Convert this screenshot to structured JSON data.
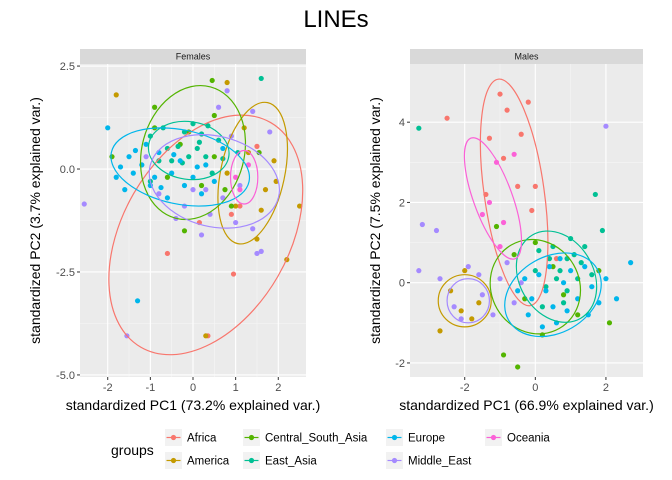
{
  "chart_data": {
    "type": "scatter",
    "title": "LINEs",
    "legend": {
      "title": "groups",
      "position": "bottom",
      "entries": [
        "Africa",
        "America",
        "Central_South_Asia",
        "East_Asia",
        "Europe",
        "Middle_East",
        "Oceania"
      ]
    },
    "group_colors": {
      "Africa": "#F8766D",
      "America": "#C49A00",
      "Central_South_Asia": "#53B400",
      "East_Asia": "#00C094",
      "Europe": "#00B6EB",
      "Middle_East": "#A58AFF",
      "Oceania": "#FB61D7"
    },
    "panels": [
      {
        "strip": "Females",
        "xlabel": "standardized PC1 (73.2% explained var.)",
        "ylabel": "standardized PC2 (3.7% explained var.)",
        "xlim": [
          -2.65,
          2.65
        ],
        "ylim": [
          -5.05,
          2.55
        ],
        "xticks": [
          -2,
          -1,
          0,
          1,
          2
        ],
        "yticks": [
          -5.0,
          -2.5,
          0.0,
          2.5
        ],
        "ytick_labels": [
          "-5.0",
          "-2.5",
          "0.0",
          "2.5"
        ],
        "ellipses": [
          {
            "group": "Africa",
            "cx": 0.3,
            "cy": -1.6,
            "rx": 1.95,
            "ry": 3.15,
            "angle": 30
          },
          {
            "group": "America",
            "cx": 1.4,
            "cy": -0.1,
            "rx": 0.75,
            "ry": 1.75,
            "angle": 12
          },
          {
            "group": "Central_South_Asia",
            "cx": 0.0,
            "cy": 0.4,
            "rx": 1.2,
            "ry": 1.65,
            "angle": 15
          },
          {
            "group": "East_Asia",
            "cx": -0.1,
            "cy": 0.45,
            "rx": 0.95,
            "ry": 0.7,
            "angle": 8
          },
          {
            "group": "Europe",
            "cx": -0.3,
            "cy": 0.05,
            "rx": 1.65,
            "ry": 0.9,
            "angle": 12
          },
          {
            "group": "Middle_East",
            "cx": 0.5,
            "cy": -0.3,
            "rx": 1.55,
            "ry": 1.1,
            "angle": 14
          },
          {
            "group": "Oceania",
            "cx": 1.2,
            "cy": -0.2,
            "rx": 0.32,
            "ry": 0.65,
            "angle": 0
          }
        ],
        "points": {
          "Africa": [
            [
              0.35,
              -4.05
            ],
            [
              0.9,
              -1.1
            ],
            [
              -0.6,
              -2.05
            ],
            [
              0.95,
              -2.55
            ],
            [
              1.1,
              -0.9
            ],
            [
              0.15,
              -1.3
            ],
            [
              1.5,
              0.55
            ]
          ],
          "America": [
            [
              2.5,
              -0.9
            ],
            [
              2.2,
              -2.2
            ],
            [
              1.6,
              -1.0
            ],
            [
              1.9,
              0.2
            ],
            [
              1.7,
              -0.5
            ],
            [
              0.8,
              2.1
            ],
            [
              1.2,
              1.0
            ],
            [
              1.5,
              -1.7
            ],
            [
              1.3,
              0.4
            ],
            [
              1.0,
              -0.9
            ],
            [
              0.8,
              -0.1
            ],
            [
              1.95,
              -0.3
            ],
            [
              -1.8,
              1.8
            ],
            [
              0.3,
              -4.05
            ]
          ],
          "Central_South_Asia": [
            [
              0.45,
              2.15
            ],
            [
              -0.9,
              1.5
            ],
            [
              -0.3,
              0.6
            ],
            [
              0.5,
              0.3
            ],
            [
              -0.6,
              -0.2
            ],
            [
              0.9,
              -0.9
            ],
            [
              0.2,
              -0.4
            ],
            [
              -0.9,
              1.0
            ],
            [
              -1.9,
              0.3
            ],
            [
              -0.1,
              0.9
            ],
            [
              0.75,
              -0.5
            ],
            [
              1.55,
              0.4
            ],
            [
              -0.2,
              -1.5
            ],
            [
              0.5,
              1.3
            ]
          ],
          "East_Asia": [
            [
              1.6,
              2.2
            ],
            [
              -1.0,
              0.8
            ],
            [
              -0.6,
              0.5
            ],
            [
              -0.2,
              0.9
            ],
            [
              0.3,
              0.3
            ],
            [
              0.6,
              0.7
            ],
            [
              -0.5,
              0.2
            ],
            [
              0.0,
              1.1
            ],
            [
              -0.35,
              0.55
            ],
            [
              0.15,
              0.65
            ],
            [
              -0.8,
              0.2
            ],
            [
              0.45,
              -0.1
            ],
            [
              -1.0,
              -0.3
            ],
            [
              1.05,
              0.4
            ],
            [
              0.35,
              1.05
            ],
            [
              -0.1,
              0.3
            ],
            [
              0.1,
              0.5
            ],
            [
              -0.7,
              1.0
            ],
            [
              0.2,
              0.85
            ],
            [
              -0.25,
              0.15
            ],
            [
              0.7,
              0.25
            ]
          ],
          "Europe": [
            [
              -1.3,
              -3.2
            ],
            [
              -2.0,
              1.0
            ],
            [
              -1.8,
              -0.2
            ],
            [
              -1.5,
              0.3
            ],
            [
              -1.2,
              0.1
            ],
            [
              -1.0,
              -0.4
            ],
            [
              -0.8,
              0.4
            ],
            [
              -0.5,
              -0.1
            ],
            [
              -0.3,
              0.2
            ],
            [
              0.0,
              -0.2
            ],
            [
              0.3,
              0.1
            ],
            [
              -1.6,
              -0.5
            ],
            [
              -1.1,
              0.6
            ],
            [
              -0.6,
              -0.7
            ],
            [
              0.2,
              -0.6
            ],
            [
              -1.4,
              -0.1
            ],
            [
              0.5,
              -0.3
            ],
            [
              0.7,
              0.5
            ],
            [
              -0.9,
              -0.2
            ],
            [
              -0.2,
              -0.4
            ],
            [
              -1.35,
              0.45
            ],
            [
              -0.45,
              0.35
            ],
            [
              -1.7,
              0.05
            ],
            [
              -0.75,
              -0.45
            ],
            [
              0.1,
              0.05
            ]
          ],
          "Middle_East": [
            [
              -2.55,
              -0.85
            ],
            [
              -1.55,
              -4.05
            ],
            [
              1.4,
              -1.45
            ],
            [
              1.6,
              -2.0
            ],
            [
              1.0,
              -1.3
            ],
            [
              0.7,
              -0.7
            ],
            [
              0.3,
              -0.5
            ],
            [
              -0.2,
              -0.9
            ],
            [
              -0.8,
              -0.6
            ],
            [
              1.4,
              1.4
            ],
            [
              0.6,
              1.5
            ],
            [
              0.9,
              0.8
            ],
            [
              -0.4,
              -1.2
            ],
            [
              0.2,
              -1.6
            ],
            [
              1.8,
              0.9
            ],
            [
              0.8,
              1.9
            ],
            [
              1.5,
              -2.05
            ],
            [
              -1.1,
              0.3
            ],
            [
              0.0,
              -0.5
            ],
            [
              1.1,
              -0.4
            ],
            [
              0.4,
              -1.1
            ]
          ],
          "Oceania": [
            [
              1.0,
              -0.2
            ],
            [
              1.3,
              0.1
            ],
            [
              1.1,
              -0.5
            ]
          ]
        }
      },
      {
        "strip": "Males",
        "xlabel": "standardized PC1 (66.9% explained var.)",
        "ylabel": "standardized PC2 (7.5% explained var.)",
        "xlim": [
          -3.55,
          3.05
        ],
        "ylim": [
          -2.35,
          5.45
        ],
        "xticks": [
          -2,
          0,
          2
        ],
        "yticks": [
          -2,
          0,
          2,
          4
        ],
        "ytick_labels": [
          "-2",
          "0",
          "2",
          "4"
        ],
        "ellipses": [
          {
            "group": "Africa",
            "cx": -0.6,
            "cy": 2.25,
            "rx": 0.85,
            "ry": 2.85,
            "angle": -8
          },
          {
            "group": "America",
            "cx": -2.0,
            "cy": -0.45,
            "rx": 0.75,
            "ry": 0.65,
            "angle": 0
          },
          {
            "group": "Central_South_Asia",
            "cx": 0.0,
            "cy": -0.1,
            "rx": 1.25,
            "ry": 1.2,
            "angle": -30
          },
          {
            "group": "East_Asia",
            "cx": 0.6,
            "cy": 0.15,
            "rx": 1.05,
            "ry": 1.2,
            "angle": -30
          },
          {
            "group": "Europe",
            "cx": 0.5,
            "cy": -0.3,
            "rx": 1.45,
            "ry": 0.95,
            "angle": -30
          },
          {
            "group": "Middle_East",
            "cx": -1.9,
            "cy": -0.45,
            "rx": 0.6,
            "ry": 0.55,
            "angle": 0
          },
          {
            "group": "Oceania",
            "cx": -1.2,
            "cy": 2.1,
            "rx": 0.55,
            "ry": 1.6,
            "angle": -20
          }
        ],
        "points": {
          "Africa": [
            [
              -1.3,
              3.6
            ],
            [
              -1.0,
              4.7
            ],
            [
              -0.2,
              4.5
            ],
            [
              -0.8,
              4.3
            ],
            [
              -0.4,
              3.7
            ],
            [
              -0.5,
              2.4
            ],
            [
              0.0,
              2.4
            ],
            [
              -1.4,
              2.2
            ],
            [
              -0.9,
              3.1
            ],
            [
              -2.5,
              4.1
            ],
            [
              0.6,
              0.6
            ],
            [
              -0.1,
              1.8
            ]
          ],
          "America": [
            [
              -2.7,
              -1.2
            ],
            [
              -2.1,
              -0.7
            ],
            [
              -2.4,
              -0.2
            ],
            [
              -1.6,
              -0.5
            ],
            [
              -1.8,
              -0.9
            ],
            [
              -2.0,
              0.3
            ]
          ],
          "Central_South_Asia": [
            [
              -1.1,
              1.4
            ],
            [
              -0.9,
              -1.8
            ],
            [
              -0.5,
              -2.1
            ],
            [
              0.2,
              -1.3
            ],
            [
              -0.3,
              -0.4
            ],
            [
              0.5,
              0.4
            ],
            [
              1.2,
              -0.8
            ],
            [
              1.8,
              0.3
            ],
            [
              -0.6,
              0.7
            ],
            [
              0.0,
              1.0
            ],
            [
              2.1,
              -1.0
            ],
            [
              0.8,
              -0.3
            ]
          ],
          "East_Asia": [
            [
              -3.3,
              3.85
            ],
            [
              1.7,
              2.2
            ],
            [
              0.1,
              0.8
            ],
            [
              0.9,
              0.6
            ],
            [
              1.4,
              0.9
            ],
            [
              0.3,
              -0.1
            ],
            [
              0.7,
              0.3
            ],
            [
              1.2,
              0.1
            ],
            [
              0.4,
              0.6
            ],
            [
              1.0,
              1.1
            ],
            [
              1.6,
              0.2
            ],
            [
              0.2,
              -0.6
            ],
            [
              0.5,
              0.9
            ],
            [
              1.9,
              1.3
            ],
            [
              0.8,
              -0.5
            ],
            [
              1.3,
              0.5
            ],
            [
              0.6,
              0.1
            ],
            [
              1.1,
              0.7
            ],
            [
              0.0,
              0.3
            ],
            [
              0.9,
              -0.2
            ]
          ],
          "Europe": [
            [
              2.7,
              0.5
            ],
            [
              2.3,
              -0.4
            ],
            [
              -0.2,
              -0.8
            ],
            [
              0.3,
              -0.2
            ],
            [
              0.8,
              0.0
            ],
            [
              1.2,
              -0.4
            ],
            [
              1.6,
              -0.1
            ],
            [
              0.1,
              0.2
            ],
            [
              0.5,
              -0.6
            ],
            [
              1.0,
              0.3
            ],
            [
              -0.5,
              -0.2
            ],
            [
              0.6,
              -1.0
            ],
            [
              1.4,
              0.4
            ],
            [
              2.0,
              0.1
            ],
            [
              -0.1,
              -0.4
            ],
            [
              0.9,
              -0.7
            ],
            [
              0.4,
              0.4
            ],
            [
              1.8,
              -0.5
            ],
            [
              0.7,
              0.6
            ],
            [
              0.2,
              -1.1
            ],
            [
              1.5,
              -0.8
            ],
            [
              -0.3,
              0.1
            ]
          ],
          "Middle_East": [
            [
              -3.2,
              1.45
            ],
            [
              -2.8,
              1.3
            ],
            [
              2.0,
              3.9
            ],
            [
              -2.3,
              -0.6
            ],
            [
              -1.5,
              -0.3
            ],
            [
              -1.0,
              0.1
            ],
            [
              -0.6,
              -0.5
            ],
            [
              -2.7,
              0.1
            ],
            [
              -1.9,
              0.4
            ],
            [
              -1.2,
              -0.8
            ],
            [
              -0.8,
              0.5
            ],
            [
              -3.3,
              0.3
            ],
            [
              -1.6,
              0.2
            ],
            [
              -2.1,
              -0.9
            ],
            [
              -0.4,
              0.0
            ]
          ],
          "Oceania": [
            [
              -1.3,
              2.0
            ],
            [
              -0.9,
              1.5
            ],
            [
              -1.1,
              3.0
            ],
            [
              -0.6,
              3.2
            ],
            [
              -1.0,
              0.9
            ],
            [
              -1.5,
              1.7
            ]
          ]
        }
      }
    ]
  }
}
